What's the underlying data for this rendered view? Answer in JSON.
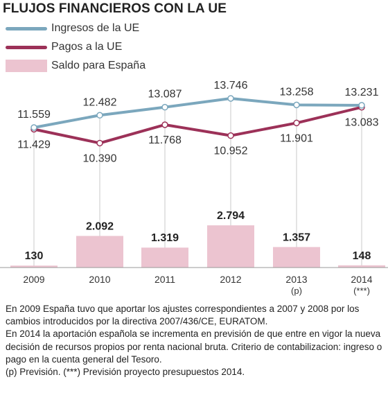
{
  "title": "FLUJOS FINANCIEROS CON LA UE",
  "colors": {
    "ingresos": "#7ba7bd",
    "pagos": "#9c3158",
    "saldo": "#ecc4d0"
  },
  "chart_data": {
    "type": "line+bar",
    "categories": [
      "2009",
      "2010",
      "2011",
      "2012",
      "2013",
      "2014"
    ],
    "category_sublabels": [
      "",
      "",
      "",
      "",
      "(p)",
      "(***)"
    ],
    "series": [
      {
        "name": "Ingresos de la UE",
        "type": "line",
        "values": [
          11559,
          12482,
          13087,
          13746,
          13258,
          13231
        ],
        "labels": [
          "11.559",
          "12.482",
          "13.087",
          "13.746",
          "13.258",
          "13.231"
        ]
      },
      {
        "name": "Pagos a la UE",
        "type": "line",
        "values": [
          11429,
          10390,
          11768,
          10952,
          11901,
          13083
        ],
        "labels": [
          "11.429",
          "10.390",
          "11.768",
          "10.952",
          "11.901",
          "13.083"
        ]
      },
      {
        "name": "Saldo para España",
        "type": "bar",
        "values": [
          130,
          2092,
          1319,
          2794,
          1357,
          148
        ],
        "labels": [
          "130",
          "2.092",
          "1.319",
          "2.794",
          "1.357",
          "148"
        ]
      }
    ],
    "legend_position": "top-left",
    "grid": false
  },
  "notes": [
    "En 2009 España tuvo que aportar los ajustes correspondientes a 2007 y 2008 por los cambios introducidos por la directiva 2007/436/CE, EURATOM.",
    "En 2014 la aportación española se incrementa en previsión de que entre en vigor la nueva decisión de recursos propios por renta nacional bruta.  Criterio de contabilizacion:  ingreso o pago en la cuenta general del Tesoro.",
    "(p) Previsión. (***) Previsión proyecto presupuestos 2014."
  ]
}
